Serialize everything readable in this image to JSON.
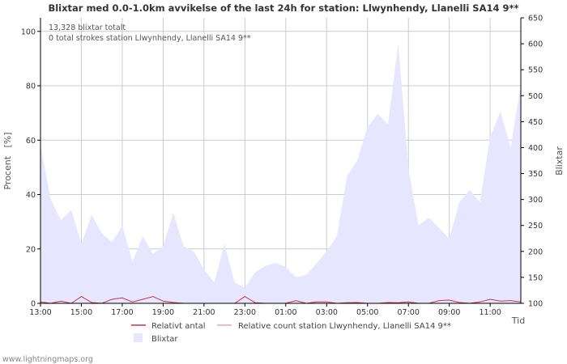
{
  "chart_data": {
    "type": "area",
    "title": "Blixtar med 0.0-1.0km avvikelse of the last 24h for station: Llwynhendy, Llanelli SA14 9**",
    "info_lines": [
      "13,328 blixtar totalt",
      "0 total strokes station Llwynhendy, Llanelli SA14 9**"
    ],
    "ylabel_left": "Procent   [%]",
    "ylabel_right": "Blixtar",
    "xlabel": "Tid",
    "ylim_left": [
      0,
      105
    ],
    "ylim_right": [
      100,
      650
    ],
    "yticks_left": [
      0,
      20,
      40,
      60,
      80,
      100
    ],
    "yticks_right": [
      100,
      150,
      200,
      250,
      300,
      350,
      400,
      450,
      500,
      550,
      600,
      650
    ],
    "xlim_hours": [
      0,
      23.5
    ],
    "xticks": [
      {
        "h": 0,
        "label": "13:00"
      },
      {
        "h": 2,
        "label": "15:00"
      },
      {
        "h": 4,
        "label": "17:00"
      },
      {
        "h": 6,
        "label": "19:00"
      },
      {
        "h": 8,
        "label": "21:00"
      },
      {
        "h": 10,
        "label": "23:00"
      },
      {
        "h": 12,
        "label": "01:00"
      },
      {
        "h": 14,
        "label": "03:00"
      },
      {
        "h": 16,
        "label": "05:00"
      },
      {
        "h": 18,
        "label": "07:00"
      },
      {
        "h": 20,
        "label": "09:00"
      },
      {
        "h": 22,
        "label": "11:00"
      }
    ],
    "series": [
      {
        "name": "Blixtar",
        "axis": "right",
        "kind": "area",
        "color": "#e6e6ff",
        "x": [
          0,
          0.5,
          1,
          1.5,
          2,
          2.5,
          3,
          3.5,
          4,
          4.5,
          5,
          5.5,
          6,
          6.5,
          7,
          7.5,
          8,
          8.5,
          9,
          9.5,
          10,
          10.5,
          11,
          11.5,
          12,
          12.5,
          13,
          13.5,
          14,
          14.5,
          15,
          15.5,
          16,
          16.5,
          17,
          17.5,
          18,
          18.5,
          19,
          19.5,
          20,
          20.5,
          21,
          21.5,
          22,
          22.5,
          23,
          23.5
        ],
        "values": [
          405,
          300,
          260,
          280,
          215,
          270,
          235,
          218,
          250,
          180,
          230,
          195,
          210,
          275,
          210,
          200,
          165,
          140,
          215,
          140,
          130,
          160,
          172,
          178,
          170,
          150,
          155,
          177,
          200,
          230,
          345,
          375,
          440,
          465,
          445,
          600,
          360,
          250,
          265,
          245,
          225,
          295,
          318,
          295,
          420,
          470,
          400,
          520
        ]
      },
      {
        "name": "Relativt antal",
        "axis": "left",
        "kind": "line",
        "color": "#cc3344",
        "x": [
          0,
          0.5,
          1,
          1.5,
          2,
          2.5,
          3,
          3.5,
          4,
          4.5,
          5,
          5.5,
          6,
          6.5,
          7,
          7.5,
          8,
          8.5,
          9,
          9.5,
          10,
          10.5,
          11,
          11.5,
          12,
          12.5,
          13,
          13.5,
          14,
          14.5,
          15,
          15.5,
          16,
          16.5,
          17,
          17.5,
          18,
          18.5,
          19,
          19.5,
          20,
          20.5,
          21,
          21.5,
          22,
          22.5,
          23,
          23.5
        ],
        "values": [
          0.5,
          0,
          0.8,
          0,
          2.5,
          0.3,
          0,
          1.5,
          2,
          0.5,
          1.5,
          2.5,
          0.8,
          0.3,
          0,
          0,
          0,
          0,
          0,
          0,
          2.5,
          0.2,
          0,
          0,
          0,
          1,
          0,
          0.5,
          0.5,
          0,
          0.2,
          0.3,
          0,
          0,
          0.3,
          0.2,
          0.5,
          0,
          0,
          1,
          1.2,
          0.3,
          0,
          0.5,
          1.5,
          0.8,
          1,
          0.5
        ]
      },
      {
        "name": "Relative count station Llwynhendy, Llanelli SA14 9**",
        "axis": "left",
        "kind": "line",
        "color": "#f0a0a8",
        "x": [],
        "values": []
      }
    ],
    "legend": {
      "placement": "bottom",
      "items": [
        {
          "label": "Relativt antal",
          "kind": "line",
          "color": "#cc3344"
        },
        {
          "label": "Relative count station Llwynhendy, Llanelli SA14 9**",
          "kind": "line",
          "color": "#f0a0a8"
        },
        {
          "label": "Blixtar",
          "kind": "box",
          "color": "#e6e6ff"
        }
      ]
    },
    "grid": true
  },
  "footer": {
    "source": "www.lightningmaps.org"
  }
}
